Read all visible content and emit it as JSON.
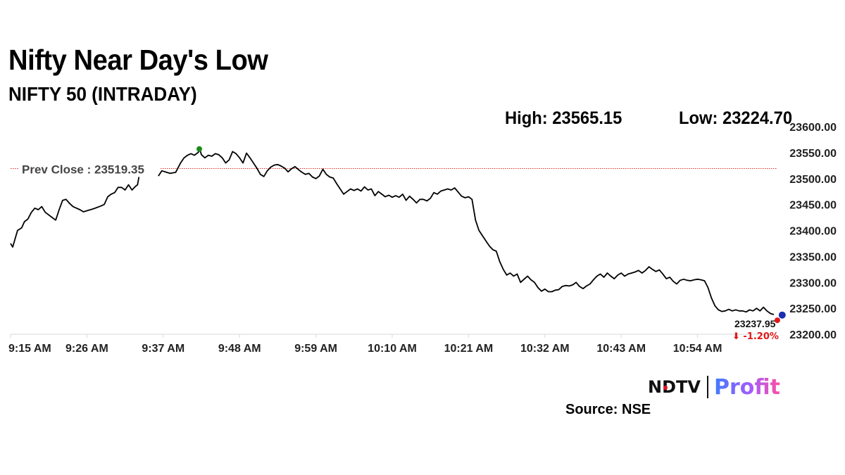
{
  "header": {
    "title": "Nifty Near Day's Low",
    "subtitle": "NIFTY 50 (INTRADAY)",
    "high_label": "High: 23565.15",
    "low_label": "Low: 23224.70"
  },
  "footer": {
    "brand_ndtv": "NDTV",
    "brand_profit": "Profit",
    "source": "Source: NSE"
  },
  "colors": {
    "line": "#000000",
    "prev_close": "#e03030",
    "high_marker": "#1a8a1a",
    "last_marker": "#e01818",
    "live_marker": "#1a2fb0",
    "change_down": "#e01818"
  },
  "chart_data": {
    "type": "line",
    "title": "NIFTY 50 (INTRADAY)",
    "x_ticks": [
      "9:15 AM",
      "9:26 AM",
      "9:37 AM",
      "9:48 AM",
      "9:59 AM",
      "10:10 AM",
      "10:21 AM",
      "10:32 AM",
      "10:43 AM",
      "10:54 AM"
    ],
    "y_ticks": [
      "23200.00",
      "23250.00",
      "23300.00",
      "23350.00",
      "23400.00",
      "23450.00",
      "23500.00",
      "23550.00",
      "23600.00"
    ],
    "ylim": [
      23200,
      23600
    ],
    "x_unit": "minutes after 9:15 AM",
    "prev_close": 23519.35,
    "prev_close_label": "Prev Close : 23519.35",
    "high": 23565.15,
    "low": 23224.7,
    "last_value_label": "23237.95",
    "change_label": "-1.20%",
    "change_arrow": "⬇",
    "series": [
      {
        "points": [
          [
            0,
            23375
          ],
          [
            0.3,
            23368
          ],
          [
            1,
            23400
          ],
          [
            1.6,
            23405
          ],
          [
            2,
            23417
          ],
          [
            2.5,
            23422
          ],
          [
            3,
            23435
          ],
          [
            3.5,
            23443
          ],
          [
            4,
            23440
          ],
          [
            4.5,
            23446
          ],
          [
            5,
            23435
          ],
          [
            6,
            23425
          ],
          [
            6.5,
            23420
          ],
          [
            7,
            23440
          ],
          [
            7.5,
            23458
          ],
          [
            8,
            23460
          ],
          [
            8.5,
            23452
          ],
          [
            9,
            23446
          ],
          [
            9.5,
            23443
          ],
          [
            10,
            23440
          ],
          [
            10.5,
            23436
          ],
          [
            11,
            23438
          ],
          [
            12,
            23442
          ],
          [
            13,
            23447
          ],
          [
            13.5,
            23450
          ],
          [
            14,
            23465
          ],
          [
            14.5,
            23470
          ],
          [
            15,
            23473
          ],
          [
            15.5,
            23483
          ],
          [
            16,
            23483
          ],
          [
            16.5,
            23478
          ],
          [
            17,
            23488
          ],
          [
            17.5,
            23478
          ],
          [
            18,
            23485
          ],
          [
            18.3,
            23488
          ],
          [
            18.5,
            23503
          ]
        ]
      },
      {
        "points": [
          [
            21.3,
            23505
          ],
          [
            21.8,
            23515
          ],
          [
            22.5,
            23512
          ],
          [
            23,
            23510
          ],
          [
            23.8,
            23512
          ],
          [
            24.5,
            23530
          ],
          [
            25,
            23540
          ],
          [
            25.5,
            23545
          ],
          [
            26,
            23548
          ],
          [
            26.5,
            23545
          ],
          [
            27,
            23550
          ],
          [
            27.3,
            23555
          ],
          [
            27.5,
            23546
          ],
          [
            28,
            23540
          ],
          [
            28.5,
            23545
          ],
          [
            29,
            23543
          ],
          [
            29.5,
            23548
          ],
          [
            30,
            23546
          ],
          [
            30.5,
            23540
          ],
          [
            31,
            23530
          ],
          [
            31.5,
            23536
          ],
          [
            32,
            23552
          ],
          [
            32.5,
            23548
          ],
          [
            33,
            23540
          ],
          [
            33.5,
            23530
          ],
          [
            34,
            23549
          ],
          [
            34.5,
            23540
          ],
          [
            35,
            23530
          ],
          [
            35.5,
            23520
          ],
          [
            36,
            23508
          ],
          [
            36.5,
            23504
          ],
          [
            37,
            23515
          ],
          [
            37.5,
            23522
          ],
          [
            38,
            23526
          ],
          [
            38.5,
            23527
          ],
          [
            39,
            23524
          ],
          [
            39.5,
            23520
          ],
          [
            40,
            23513
          ],
          [
            40.5,
            23519
          ],
          [
            41,
            23523
          ],
          [
            41.5,
            23517
          ],
          [
            42,
            23512
          ],
          [
            42.5,
            23508
          ],
          [
            43,
            23510
          ],
          [
            43.5,
            23503
          ],
          [
            44,
            23500
          ],
          [
            44.5,
            23505
          ],
          [
            45,
            23518
          ],
          [
            45.5,
            23508
          ],
          [
            46,
            23503
          ],
          [
            46.5,
            23501
          ],
          [
            47,
            23490
          ],
          [
            47.5,
            23480
          ],
          [
            48,
            23470
          ],
          [
            48.5,
            23475
          ],
          [
            49,
            23480
          ],
          [
            49.5,
            23477
          ],
          [
            50,
            23480
          ],
          [
            50.5,
            23476
          ],
          [
            51,
            23484
          ],
          [
            51.5,
            23478
          ],
          [
            52,
            23480
          ],
          [
            52.5,
            23467
          ],
          [
            53,
            23475
          ],
          [
            53.5,
            23470
          ],
          [
            54,
            23465
          ],
          [
            54.5,
            23468
          ],
          [
            55,
            23464
          ],
          [
            55.5,
            23467
          ],
          [
            56,
            23464
          ],
          [
            56.5,
            23470
          ],
          [
            57,
            23458
          ],
          [
            57.5,
            23466
          ],
          [
            58,
            23460
          ],
          [
            58.5,
            23453
          ],
          [
            59,
            23460
          ],
          [
            59.5,
            23460
          ],
          [
            60,
            23457
          ],
          [
            60.5,
            23462
          ],
          [
            61,
            23473
          ],
          [
            61.5,
            23470
          ],
          [
            62,
            23476
          ],
          [
            62.5,
            23478
          ],
          [
            63,
            23480
          ],
          [
            63.5,
            23478
          ],
          [
            64,
            23482
          ],
          [
            64.5,
            23474
          ],
          [
            65,
            23466
          ],
          [
            65.5,
            23463
          ],
          [
            66,
            23465
          ],
          [
            66.5,
            23460
          ],
          [
            67,
            23420
          ],
          [
            67.5,
            23400
          ],
          [
            68,
            23390
          ],
          [
            68.5,
            23380
          ],
          [
            69,
            23370
          ],
          [
            69.5,
            23363
          ],
          [
            70,
            23360
          ],
          [
            70.5,
            23340
          ],
          [
            71,
            23325
          ],
          [
            71.5,
            23314
          ],
          [
            72,
            23318
          ],
          [
            72.5,
            23312
          ],
          [
            73,
            23316
          ],
          [
            73.5,
            23300
          ],
          [
            74,
            23306
          ],
          [
            74.5,
            23312
          ],
          [
            75,
            23305
          ],
          [
            75.5,
            23300
          ],
          [
            76,
            23290
          ],
          [
            76.5,
            23283
          ],
          [
            77,
            23287
          ],
          [
            77.5,
            23282
          ],
          [
            78,
            23282
          ],
          [
            78.5,
            23285
          ],
          [
            79,
            23286
          ],
          [
            79.5,
            23292
          ],
          [
            80,
            23294
          ],
          [
            80.5,
            23293
          ],
          [
            81,
            23295
          ],
          [
            81.5,
            23300
          ],
          [
            82,
            23292
          ],
          [
            82.5,
            23288
          ],
          [
            83,
            23293
          ],
          [
            83.5,
            23297
          ],
          [
            84,
            23305
          ],
          [
            84.5,
            23312
          ],
          [
            85,
            23316
          ],
          [
            85.5,
            23310
          ],
          [
            86,
            23318
          ],
          [
            86.5,
            23312
          ],
          [
            87,
            23307
          ],
          [
            87.5,
            23314
          ],
          [
            88,
            23318
          ],
          [
            88.5,
            23312
          ],
          [
            89,
            23316
          ],
          [
            89.5,
            23318
          ],
          [
            90,
            23320
          ],
          [
            90.5,
            23323
          ],
          [
            91,
            23318
          ],
          [
            91.5,
            23323
          ],
          [
            92,
            23330
          ],
          [
            92.5,
            23325
          ],
          [
            93,
            23321
          ],
          [
            93.5,
            23324
          ],
          [
            94,
            23316
          ],
          [
            94.5,
            23307
          ],
          [
            95,
            23310
          ],
          [
            95.5,
            23302
          ],
          [
            96,
            23297
          ],
          [
            96.5,
            23304
          ],
          [
            97,
            23306
          ],
          [
            97.5,
            23304
          ],
          [
            98,
            23303
          ],
          [
            98.5,
            23305
          ],
          [
            99,
            23306
          ],
          [
            99.5,
            23305
          ],
          [
            100,
            23303
          ],
          [
            100.5,
            23290
          ],
          [
            101,
            23270
          ],
          [
            101.5,
            23255
          ],
          [
            102,
            23247
          ],
          [
            102.5,
            23244
          ],
          [
            103,
            23245
          ],
          [
            103.5,
            23248
          ],
          [
            104,
            23245
          ],
          [
            104.5,
            23247
          ],
          [
            105,
            23245
          ],
          [
            105.5,
            23245
          ],
          [
            106,
            23243
          ],
          [
            106.5,
            23247
          ],
          [
            107,
            23245
          ],
          [
            107.5,
            23250
          ],
          [
            108,
            23245
          ],
          [
            108.5,
            23252
          ],
          [
            109,
            23245
          ],
          [
            109.5,
            23240
          ],
          [
            110,
            23237.95
          ]
        ]
      }
    ],
    "markers": [
      {
        "label": "high",
        "x": 27.2,
        "y": 23557
      },
      {
        "label": "last",
        "x": 110.5,
        "y": 23227
      },
      {
        "label": "live",
        "x": 111.2,
        "y": 23237
      }
    ]
  }
}
